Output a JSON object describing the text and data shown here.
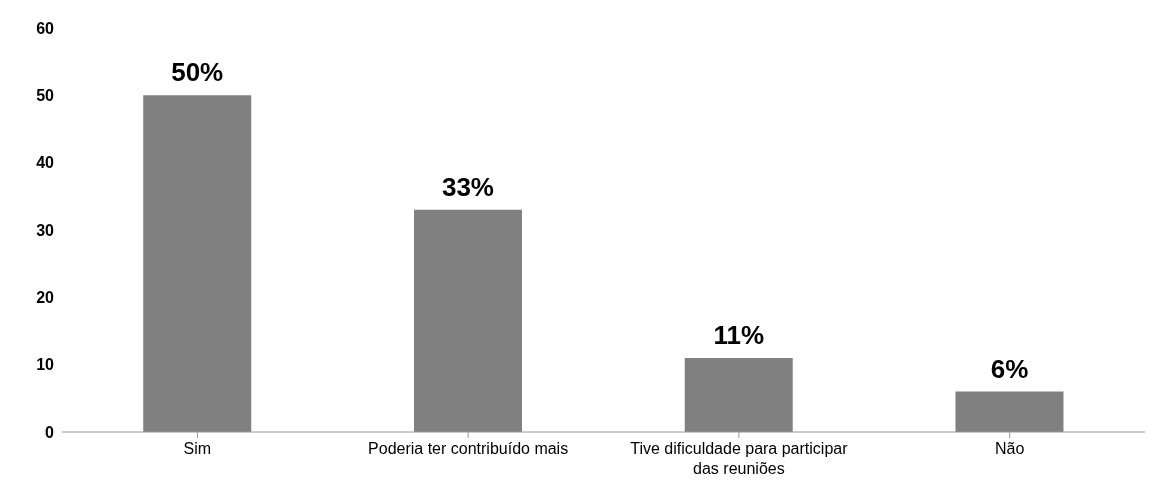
{
  "chart_data": {
    "type": "bar",
    "categories": [
      "Sim",
      "Poderia ter contribuído mais",
      "Tive dificuldade para participar das reuniões",
      "Não"
    ],
    "values": [
      50,
      33,
      11,
      6
    ],
    "color": "#808080",
    "value_labels": [
      "50%",
      "33%",
      "11%",
      "6%"
    ],
    "ylim": [
      0,
      60
    ],
    "yticks": [
      0,
      10,
      20,
      30,
      40,
      50,
      60
    ],
    "grid": false,
    "legend": false
  }
}
